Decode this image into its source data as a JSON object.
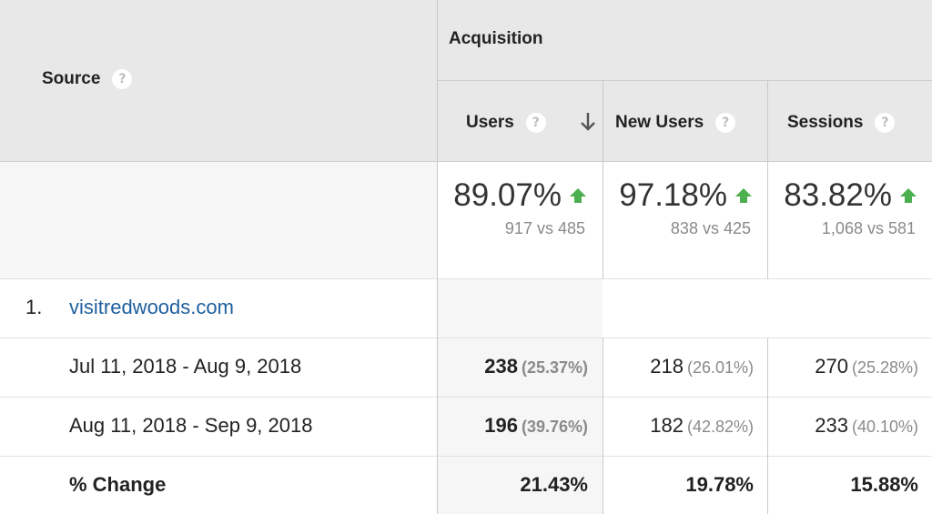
{
  "header": {
    "source_label": "Source",
    "group_label": "Acquisition",
    "columns": [
      {
        "label": "Users",
        "sorted": "descending"
      },
      {
        "label": "New Users"
      },
      {
        "label": "Sessions"
      }
    ]
  },
  "summary": [
    {
      "change": "89.07%",
      "comparison": "917 vs 485"
    },
    {
      "change": "97.18%",
      "comparison": "838 vs 425"
    },
    {
      "change": "83.82%",
      "comparison": "1,068 vs 581"
    }
  ],
  "rows": [
    {
      "index": "1.",
      "source": "visitredwoods.com",
      "periods": [
        {
          "label": "Jul 11, 2018 - Aug 9, 2018",
          "values": [
            {
              "value": "238",
              "share": "(25.37%)"
            },
            {
              "value": "218",
              "share": "(26.01%)"
            },
            {
              "value": "270",
              "share": "(25.28%)"
            }
          ]
        },
        {
          "label": "Aug 11, 2018 - Sep 9, 2018",
          "values": [
            {
              "value": "196",
              "share": "(39.76%)"
            },
            {
              "value": "182",
              "share": "(42.82%)"
            },
            {
              "value": "233",
              "share": "(40.10%)"
            }
          ]
        }
      ],
      "change": {
        "label": "% Change",
        "values": [
          "21.43%",
          "19.78%",
          "15.88%"
        ]
      }
    }
  ],
  "colors": {
    "header_bg": "#e8e8e8",
    "link": "#1f5f9e",
    "up_arrow": "#4caf50",
    "grid": "#c9c9c9"
  },
  "icons": {
    "help": "help-circle-icon",
    "sort": "arrow-down-icon",
    "trend": "arrow-up-icon",
    "help_glyph": "?"
  }
}
